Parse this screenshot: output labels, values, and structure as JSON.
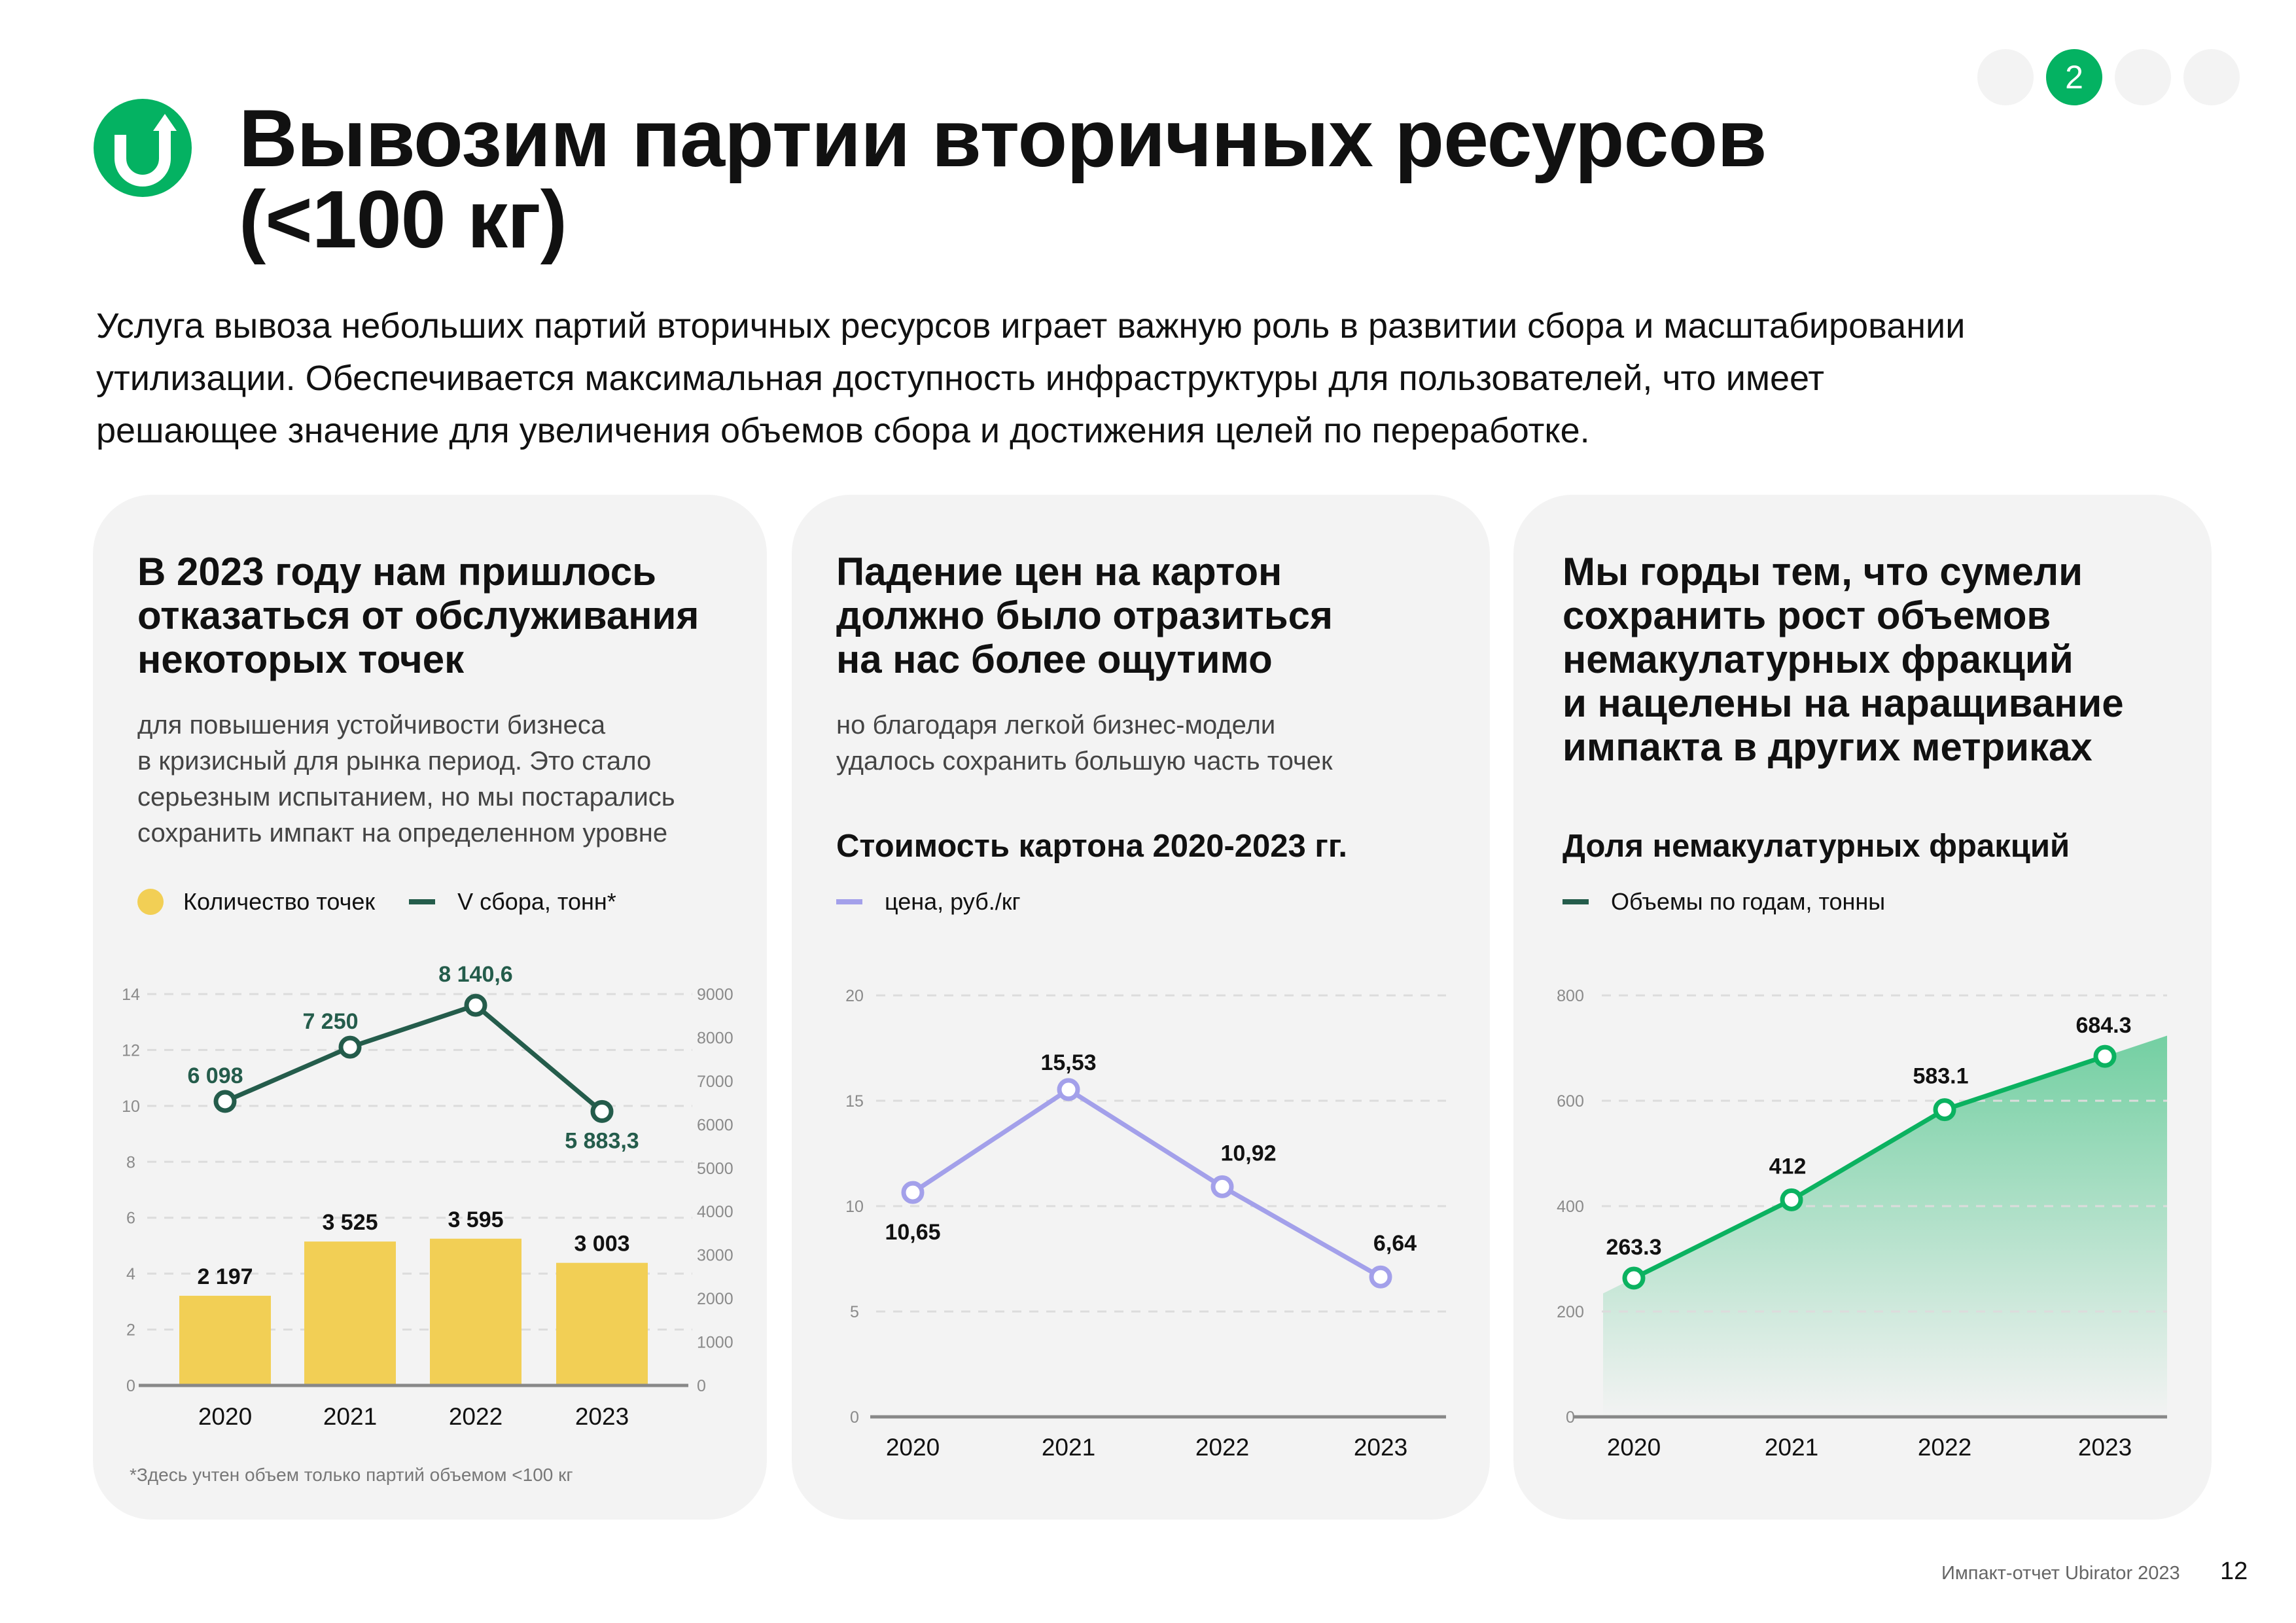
{
  "pager": {
    "items": [
      "",
      "2",
      "",
      ""
    ],
    "active_index": 1,
    "accent": "#04b262"
  },
  "logo": {
    "icon": "u-turn-arrow-icon",
    "color": "#04b262"
  },
  "header": {
    "title_lines": [
      "Вывозим партии вторичных ресурсов",
      "(<100 кг)"
    ]
  },
  "lead": {
    "lines": [
      "Услуга вывоза небольших партий вторичных ресурсов играет важную роль в развитии сбора и масштабировании",
      "утилизации. Обеспечивается максимальная доступность инфраструктуры для пользователей, что имеет",
      "решающее значение для увеличения объемов сбора и достижения целей по переработке."
    ]
  },
  "cards": [
    {
      "heading": [
        "В 2023 году нам пришлось",
        "отказаться от обслуживания",
        "некоторых точек"
      ],
      "sub": [
        "для повышения устойчивости бизнеса",
        "в кризисный для рынка период. Это стало",
        "серьезным испытанием, но мы постарались",
        "сохранить импакт на определенном уровне"
      ],
      "legend": [
        {
          "label": "Количество точек",
          "swatch": "dot",
          "color": "#f2cf55"
        },
        {
          "label": "V сбора, тонн*",
          "swatch": "line",
          "color": "#245c4b"
        }
      ],
      "footnote": "*Здесь учтен объем только партий объемом <100 кг"
    },
    {
      "heading": [
        "Падение цен на картон",
        "должно было отразиться",
        "на нас более ощутимо"
      ],
      "sub": [
        "но благодаря легкой бизнес-модели",
        "удалось сохранить большую часть точек"
      ],
      "chart_title": "Стоимость картона 2020-2023 гг.",
      "legend": [
        {
          "label": "цена, руб./кг",
          "swatch": "line",
          "color": "#a3a0ea"
        }
      ]
    },
    {
      "heading": [
        "Мы горды тем, что сумели",
        "сохранить рост объемов",
        "немакулатурных фракций",
        "и нацелены на наращивание",
        "импакта в других метриках"
      ],
      "chart_title": "Доля немакулатурных фракций",
      "legend": [
        {
          "label": "Объемы по годам, тонны",
          "swatch": "line",
          "color": "#245c4b"
        }
      ]
    }
  ],
  "chart_data": [
    {
      "type": "bar+line",
      "categories": [
        "2020",
        "2021",
        "2022",
        "2023"
      ],
      "series": [
        {
          "name": "Количество точек",
          "type": "bar",
          "values": [
            2197,
            3525,
            3595,
            3003
          ],
          "labels": [
            "2 197",
            "3 525",
            "3 595",
            "3 003"
          ],
          "color": "#f2cf55"
        },
        {
          "name": "V сбора, тонн*",
          "type": "line",
          "values": [
            6098,
            7250,
            8140.6,
            5883.3
          ],
          "labels": [
            "6 098",
            "7 250",
            "8 140,6",
            "5 883,3"
          ],
          "color": "#245c4b"
        }
      ],
      "y_left": {
        "ticks": [
          "0",
          "2",
          "4",
          "6",
          "8",
          "10",
          "12",
          "14"
        ],
        "range": [
          0,
          14
        ]
      },
      "y_right": {
        "ticks": [
          "0",
          "1000",
          "2000",
          "3000",
          "4000",
          "5000",
          "6000",
          "7000",
          "8000",
          "9000"
        ],
        "range": [
          0,
          9000
        ]
      },
      "grid": true
    },
    {
      "type": "line",
      "categories": [
        "2020",
        "2021",
        "2022",
        "2023"
      ],
      "series": [
        {
          "name": "цена, руб./кг",
          "values": [
            10.65,
            15.53,
            10.92,
            6.64
          ],
          "labels": [
            "10,65",
            "15,53",
            "10,92",
            "6,64"
          ],
          "color": "#a3a0ea"
        }
      ],
      "y": {
        "ticks": [
          "0",
          "5",
          "10",
          "15",
          "20"
        ],
        "range": [
          0,
          20
        ]
      },
      "grid": true
    },
    {
      "type": "area",
      "categories": [
        "2020",
        "2021",
        "2022",
        "2023"
      ],
      "series": [
        {
          "name": "Объемы по годам, тонны",
          "values": [
            263.3,
            412,
            583.1,
            684.3
          ],
          "labels": [
            "263.3",
            "412",
            "583.1",
            "684.3"
          ],
          "color": "#0bb260"
        }
      ],
      "y": {
        "ticks": [
          "0",
          "200",
          "400",
          "600",
          "800"
        ],
        "range": [
          0,
          800
        ]
      },
      "grid": true
    }
  ],
  "footer": {
    "report": "Импакт-отчет Ubirator 2023",
    "page": "12"
  }
}
